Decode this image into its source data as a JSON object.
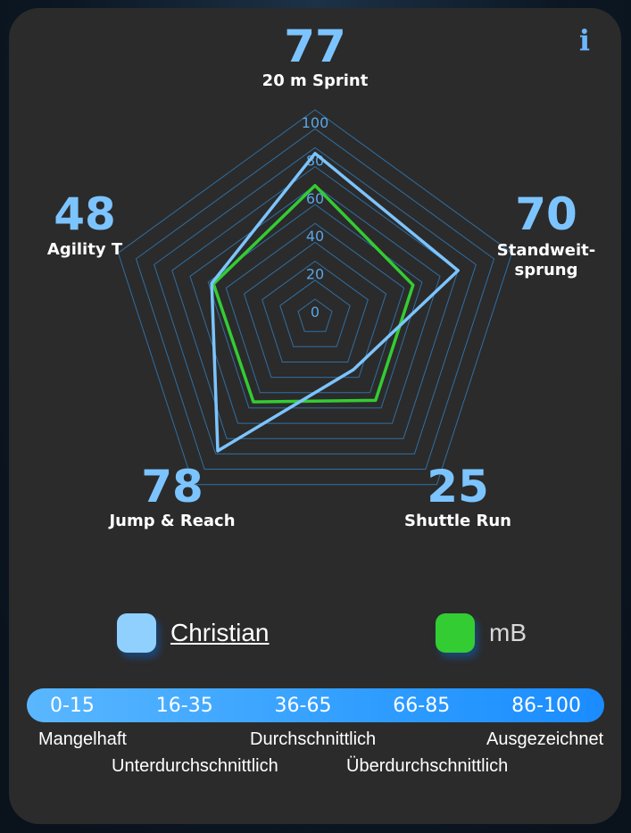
{
  "chart_data": {
    "type": "radar",
    "scale_ticks": [
      "0",
      "20",
      "40",
      "60",
      "80",
      "100"
    ],
    "axes": [
      {
        "label": "20 m Sprint",
        "score": "77"
      },
      {
        "label": "Standweit-\nsprung",
        "score": "70"
      },
      {
        "label": "Shuttle Run",
        "score": "25"
      },
      {
        "label": "Jump & Reach",
        "score": "78"
      },
      {
        "label": "Agility T",
        "score": "48"
      }
    ],
    "rmax": 100,
    "series": [
      {
        "name": "Christian",
        "values": [
          77,
          70,
          25,
          78,
          48
        ],
        "color": "#7cc4ff"
      },
      {
        "name": "mB",
        "values": [
          60,
          45,
          45,
          46,
          47
        ],
        "color": "#33cc33"
      }
    ]
  },
  "legend": [
    {
      "name": "Christian",
      "color": "#8fd0ff",
      "underlined": true
    },
    {
      "name": "mB",
      "color": "#33cc33",
      "underlined": false
    }
  ],
  "scale": {
    "segments": [
      "0-15",
      "16-35",
      "36-65",
      "66-85",
      "86-100"
    ],
    "ratings": [
      "Mangelhaft",
      "Unterdurchschnittlich",
      "Durchschnittlich",
      "Überdurchschnittlich",
      "Ausgezeichnet"
    ]
  },
  "info_icon": "info-icon"
}
